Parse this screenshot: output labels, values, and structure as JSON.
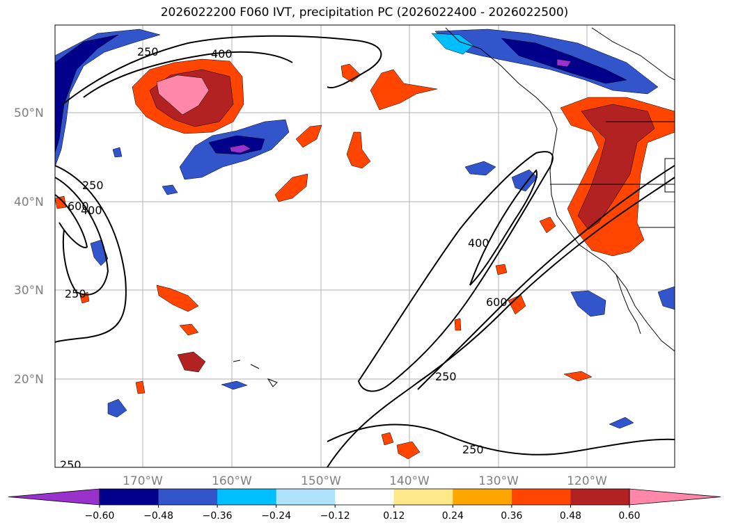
{
  "title": "2026022200 F060 IVT, precipitation PC (2026022400 - 2026022500)",
  "lat_labels": [
    "50°N",
    "40°N",
    "30°N",
    "20°N"
  ],
  "lon_labels": [
    "170°W",
    "160°W",
    "150°W",
    "140°W",
    "130°W",
    "120°W"
  ],
  "contour_labels": [
    "250",
    "400",
    "250",
    "600",
    "400",
    "250",
    "250",
    "400",
    "600",
    "250",
    "250",
    "250"
  ],
  "colorbar": {
    "ticks": [
      "−0.60",
      "−0.48",
      "−0.36",
      "−0.24",
      "−0.12",
      "0.12",
      "0.24",
      "0.36",
      "0.48",
      "0.60"
    ],
    "colors": [
      "#9932cc",
      "#00008b",
      "#3355cc",
      "#00bfff",
      "#aee2fa",
      "#ffffff",
      "#ffe88a",
      "#ffa500",
      "#ff4500",
      "#b22222",
      "#ff88aa"
    ]
  }
}
